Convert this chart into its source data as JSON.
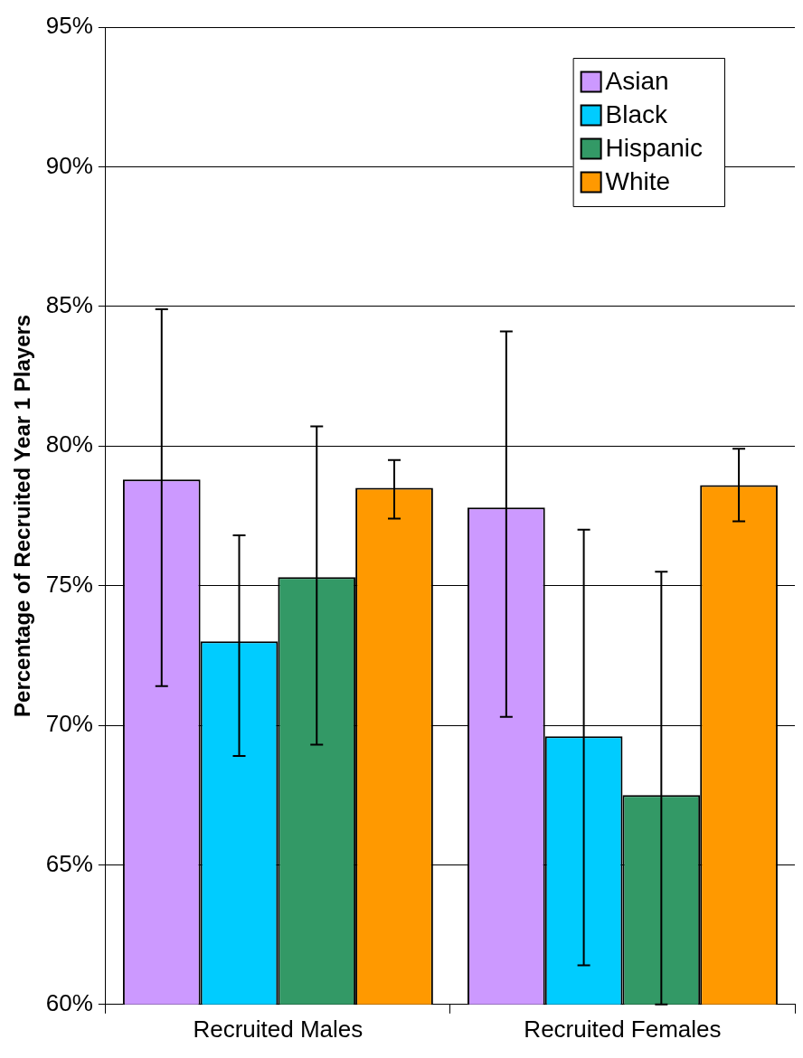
{
  "chart_data": {
    "type": "bar",
    "ylabel": "Percentage of Recruited Year 1 Players",
    "categories": [
      "Recruited Males",
      "Recruited Females"
    ],
    "series": [
      {
        "name": "Asian",
        "color": "#cc99ff",
        "values": [
          78.8,
          77.8
        ],
        "errors": [
          [
            71.4,
            84.9
          ],
          [
            70.3,
            84.1
          ]
        ]
      },
      {
        "name": "Black",
        "color": "#00ccff",
        "values": [
          73.0,
          69.6
        ],
        "errors": [
          [
            68.9,
            76.8
          ],
          [
            61.4,
            77.0
          ]
        ]
      },
      {
        "name": "Hispanic",
        "color": "#339966",
        "values": [
          75.3,
          67.5
        ],
        "errors": [
          [
            69.3,
            80.7
          ],
          [
            60,
            75.5
          ]
        ]
      },
      {
        "name": "White",
        "color": "#ff9900",
        "values": [
          78.5,
          78.6
        ],
        "errors": [
          [
            77.4,
            79.5
          ],
          [
            77.3,
            79.9
          ]
        ]
      }
    ],
    "ylim": [
      60,
      95
    ],
    "yticks": [
      {
        "value": 60,
        "label": "60%"
      },
      {
        "value": 65,
        "label": "65%"
      },
      {
        "value": 70,
        "label": "70%"
      },
      {
        "value": 75,
        "label": "75%"
      },
      {
        "value": 80,
        "label": "80%"
      },
      {
        "value": 85,
        "label": "85%"
      },
      {
        "value": 90,
        "label": "90%"
      },
      {
        "value": 95,
        "label": "95%"
      }
    ],
    "grid": "y",
    "legend": "top right"
  }
}
